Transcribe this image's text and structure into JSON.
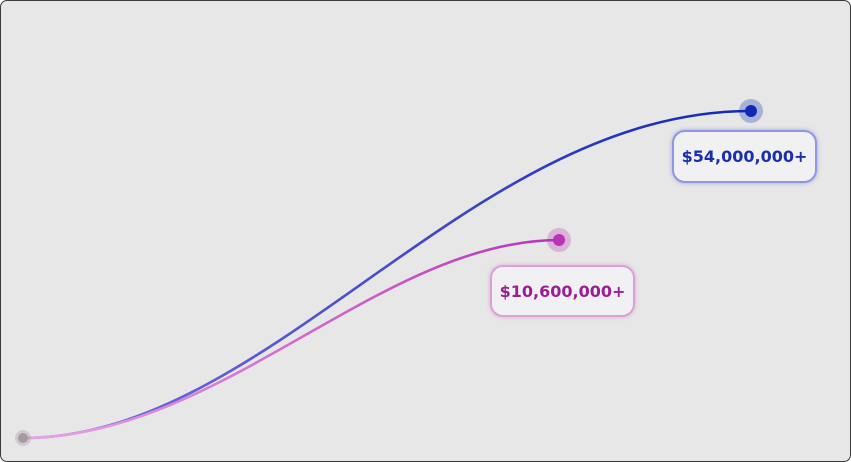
{
  "chart_data": {
    "type": "line",
    "title": "",
    "xlabel": "",
    "ylabel": "",
    "grid": false,
    "legend": "none",
    "series": [
      {
        "label": "$54,000,000+",
        "start_value": 0,
        "end_value": 54000000,
        "color": "#1028b8",
        "start_color": "#7b6fe0",
        "label_color": "#1a2fb0"
      },
      {
        "label": "$10,600,000+",
        "start_value": 0,
        "end_value": 10600000,
        "color": "#b833b8",
        "start_color": "#e8a6e4",
        "label_color": "#9a1e94"
      }
    ],
    "origin_color": "#a59a9e"
  }
}
